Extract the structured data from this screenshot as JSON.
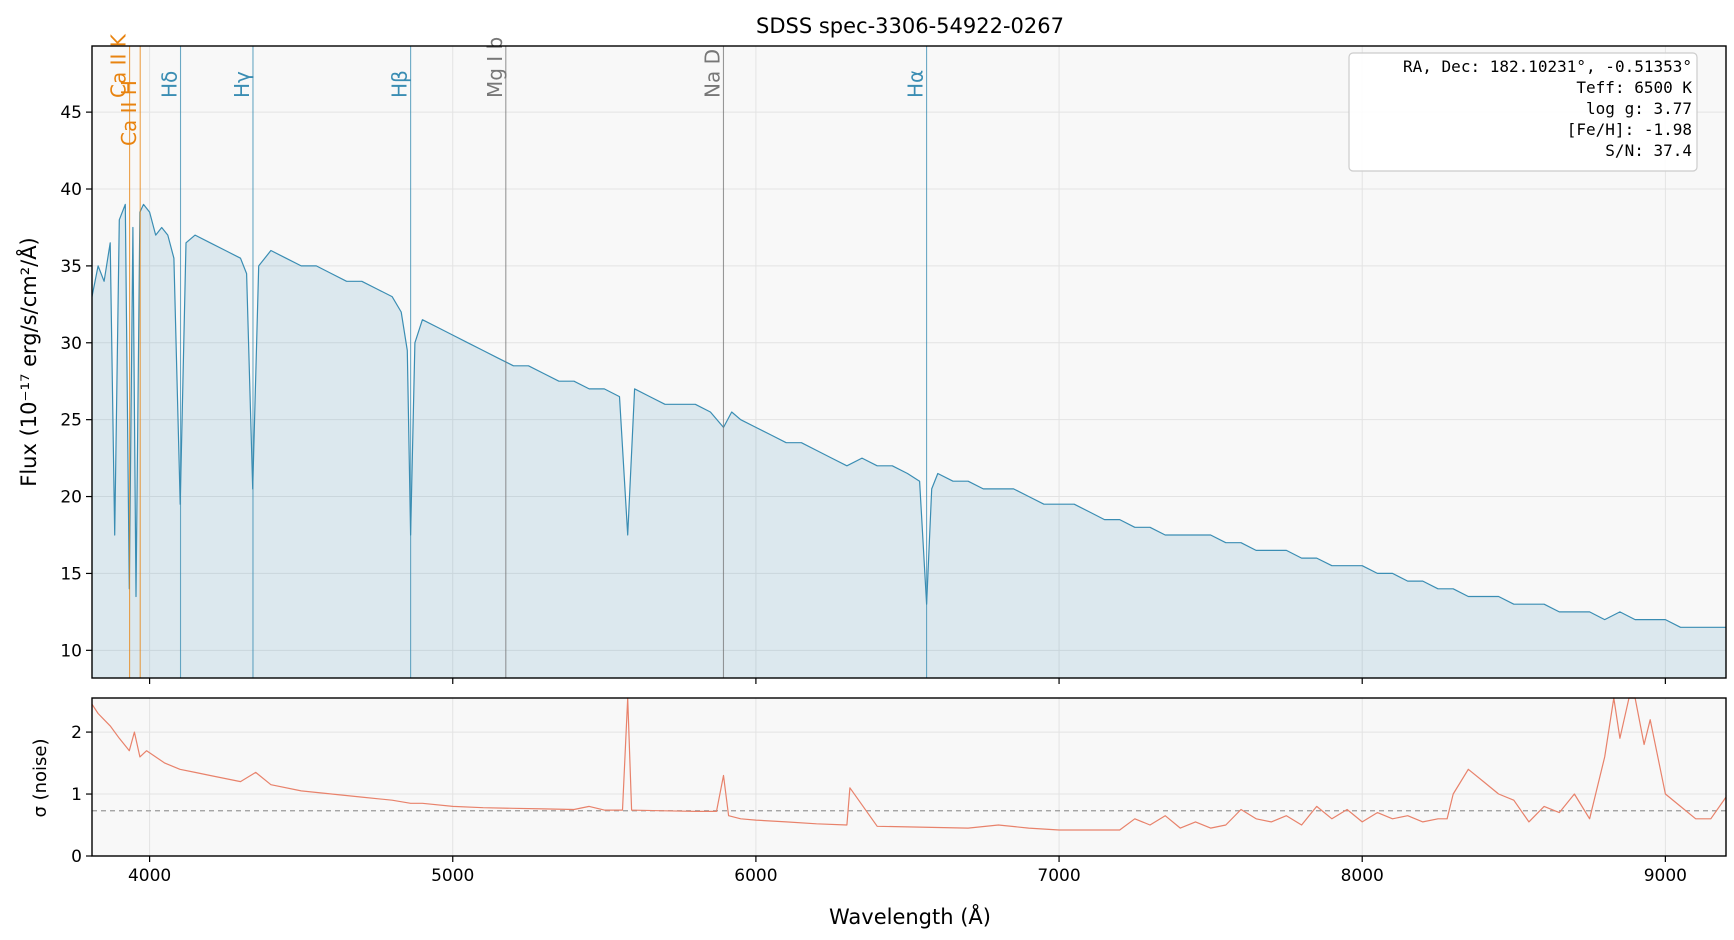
{
  "chart_data": [
    {
      "type": "line",
      "title": "SDSS spec-3306-54922-0267",
      "xlabel": "Wavelength (Å)",
      "ylabel": "Flux (10⁻¹⁷ erg/s/cm²/Å)",
      "xlim": [
        3810,
        9200
      ],
      "ylim": [
        8.2,
        49.3
      ],
      "xticks": [
        4000,
        5000,
        6000,
        7000,
        8000,
        9000
      ],
      "yticks": [
        10,
        15,
        20,
        25,
        30,
        35,
        40,
        45
      ],
      "grid": true,
      "fill_under": true,
      "series": [
        {
          "color": "#3a8db3",
          "x": [
            3810,
            3830,
            3850,
            3870,
            3885,
            3900,
            3920,
            3933,
            3945,
            3955,
            3968,
            3980,
            4000,
            4020,
            4040,
            4060,
            4080,
            4101,
            4120,
            4150,
            4200,
            4250,
            4300,
            4320,
            4340,
            4360,
            4400,
            4450,
            4500,
            4550,
            4600,
            4650,
            4700,
            4750,
            4800,
            4830,
            4850,
            4861,
            4875,
            4900,
            4950,
            5000,
            5050,
            5100,
            5150,
            5200,
            5250,
            5300,
            5350,
            5400,
            5450,
            5500,
            5550,
            5577,
            5600,
            5650,
            5700,
            5750,
            5800,
            5850,
            5893,
            5920,
            5950,
            6000,
            6050,
            6100,
            6150,
            6200,
            6250,
            6300,
            6350,
            6400,
            6450,
            6500,
            6540,
            6563,
            6580,
            6600,
            6650,
            6700,
            6750,
            6800,
            6850,
            6900,
            6950,
            7000,
            7050,
            7100,
            7150,
            7200,
            7250,
            7300,
            7350,
            7400,
            7450,
            7500,
            7550,
            7600,
            7650,
            7700,
            7750,
            7800,
            7850,
            7900,
            7950,
            8000,
            8050,
            8100,
            8150,
            8200,
            8250,
            8300,
            8350,
            8400,
            8450,
            8500,
            8550,
            8600,
            8650,
            8700,
            8750,
            8800,
            8850,
            8900,
            8950,
            9000,
            9050,
            9100,
            9150,
            9200
          ],
          "y": [
            33.0,
            35.0,
            34.0,
            36.5,
            17.5,
            38.0,
            39.0,
            14.0,
            37.5,
            13.5,
            38.5,
            39.0,
            38.5,
            37.0,
            37.5,
            37.0,
            35.5,
            19.5,
            36.5,
            37.0,
            36.5,
            36.0,
            35.5,
            34.5,
            20.5,
            35.0,
            36.0,
            35.5,
            35.0,
            35.0,
            34.5,
            34.0,
            34.0,
            33.5,
            33.0,
            32.0,
            29.5,
            17.5,
            30.0,
            31.5,
            31.0,
            30.5,
            30.0,
            29.5,
            29.0,
            28.5,
            28.5,
            28.0,
            27.5,
            27.5,
            27.0,
            27.0,
            26.5,
            17.5,
            27.0,
            26.5,
            26.0,
            26.0,
            26.0,
            25.5,
            24.5,
            25.5,
            25.0,
            24.5,
            24.0,
            23.5,
            23.5,
            23.0,
            22.5,
            22.0,
            22.5,
            22.0,
            22.0,
            21.5,
            21.0,
            13.0,
            20.5,
            21.5,
            21.0,
            21.0,
            20.5,
            20.5,
            20.5,
            20.0,
            19.5,
            19.5,
            19.5,
            19.0,
            18.5,
            18.5,
            18.0,
            18.0,
            17.5,
            17.5,
            17.5,
            17.5,
            17.0,
            17.0,
            16.5,
            16.5,
            16.5,
            16.0,
            16.0,
            15.5,
            15.5,
            15.5,
            15.0,
            15.0,
            14.5,
            14.5,
            14.0,
            14.0,
            13.5,
            13.5,
            13.5,
            13.0,
            13.0,
            13.0,
            12.5,
            12.5,
            12.5,
            12.0,
            12.5,
            12.0,
            12.0,
            12.0,
            11.5,
            11.5,
            11.5,
            11.5
          ]
        }
      ],
      "line_markers": [
        {
          "label": "Ca II K",
          "wavelength": 3934,
          "color": "#e8830f"
        },
        {
          "label": "Ca II H",
          "wavelength": 3969,
          "color": "#e8830f"
        },
        {
          "label": "Hδ",
          "wavelength": 4102,
          "color": "#3a8db3"
        },
        {
          "label": "Hγ",
          "wavelength": 4341,
          "color": "#3a8db3"
        },
        {
          "label": "Hβ",
          "wavelength": 4861,
          "color": "#3a8db3"
        },
        {
          "label": "Mg I b",
          "wavelength": 5175,
          "color": "#777777"
        },
        {
          "label": "Na D",
          "wavelength": 5893,
          "color": "#777777"
        },
        {
          "label": "Hα",
          "wavelength": 6563,
          "color": "#3a8db3"
        }
      ],
      "info_box": {
        "position": "top-right",
        "lines": [
          "RA, Dec: 182.10231°, -0.51353°",
          "Teff: 6500 K",
          "log g: 3.77",
          "[Fe/H]: -1.98",
          "S/N: 37.4"
        ]
      }
    },
    {
      "type": "line",
      "xlabel": "Wavelength (Å)",
      "ylabel": "σ (noise)",
      "xlim": [
        3810,
        9200
      ],
      "ylim": [
        0,
        2.55
      ],
      "xticks": [
        4000,
        5000,
        6000,
        7000,
        8000,
        9000
      ],
      "yticks": [
        0,
        1,
        2
      ],
      "grid": true,
      "reference_line": 0.73,
      "series": [
        {
          "color": "#e8826b",
          "x": [
            3810,
            3830,
            3850,
            3870,
            3900,
            3933,
            3950,
            3968,
            3990,
            4050,
            4100,
            4150,
            4200,
            4300,
            4350,
            4400,
            4500,
            4600,
            4700,
            4800,
            4861,
            4900,
            5000,
            5100,
            5200,
            5300,
            5400,
            5450,
            5500,
            5560,
            5577,
            5590,
            5700,
            5800,
            5870,
            5893,
            5910,
            5950,
            6000,
            6100,
            6200,
            6300,
            6310,
            6400,
            6500,
            6600,
            6700,
            6800,
            6900,
            7000,
            7100,
            7200,
            7250,
            7300,
            7350,
            7400,
            7450,
            7500,
            7550,
            7600,
            7650,
            7700,
            7750,
            7800,
            7850,
            7900,
            7950,
            8000,
            8050,
            8100,
            8150,
            8200,
            8250,
            8280,
            8300,
            8350,
            8400,
            8450,
            8500,
            8550,
            8600,
            8650,
            8700,
            8750,
            8800,
            8830,
            8850,
            8880,
            8900,
            8930,
            8950,
            9000,
            9050,
            9100,
            9150,
            9200
          ],
          "y": [
            2.45,
            2.3,
            2.2,
            2.1,
            1.9,
            1.7,
            2.0,
            1.6,
            1.7,
            1.5,
            1.4,
            1.35,
            1.3,
            1.2,
            1.35,
            1.15,
            1.05,
            1.0,
            0.95,
            0.9,
            0.85,
            0.85,
            0.8,
            0.78,
            0.77,
            0.76,
            0.75,
            0.8,
            0.74,
            0.74,
            2.55,
            0.74,
            0.73,
            0.72,
            0.72,
            1.3,
            0.65,
            0.6,
            0.58,
            0.55,
            0.52,
            0.5,
            1.1,
            0.48,
            0.47,
            0.46,
            0.45,
            0.5,
            0.45,
            0.42,
            0.42,
            0.42,
            0.6,
            0.5,
            0.65,
            0.45,
            0.55,
            0.45,
            0.5,
            0.75,
            0.6,
            0.55,
            0.65,
            0.5,
            0.8,
            0.6,
            0.75,
            0.55,
            0.7,
            0.6,
            0.65,
            0.55,
            0.6,
            0.6,
            1.0,
            1.4,
            1.2,
            1.0,
            0.9,
            0.55,
            0.8,
            0.7,
            1.0,
            0.6,
            1.6,
            2.55,
            1.9,
            2.55,
            2.55,
            1.8,
            2.2,
            1.0,
            0.8,
            0.6,
            0.6,
            0.95
          ]
        }
      ]
    }
  ]
}
